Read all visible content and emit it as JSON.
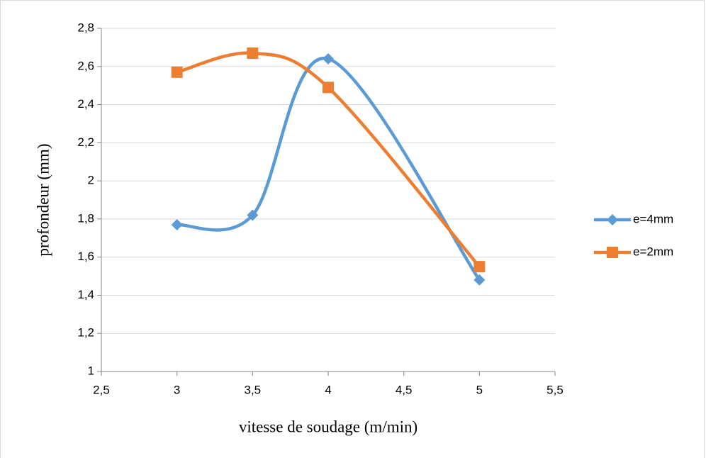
{
  "chart_data": {
    "type": "line",
    "x_label": "vitesse de soudage (m/min)",
    "y_label": "profondeur (mm)",
    "x": [
      3,
      3.5,
      4,
      5
    ],
    "series": [
      {
        "name": "e=4mm",
        "color": "#5b9bd5",
        "marker": "diamond",
        "values": [
          1.77,
          1.82,
          2.64,
          1.48
        ]
      },
      {
        "name": "e=2mm",
        "color": "#ed7d31",
        "marker": "square",
        "values": [
          2.57,
          2.67,
          2.49,
          1.55
        ]
      }
    ],
    "smooth": true,
    "xlim": [
      2.5,
      5.5
    ],
    "xticks": [
      {
        "value": 2.5,
        "label": "2,5"
      },
      3,
      {
        "value": 3.5,
        "label": "3,5"
      },
      4,
      {
        "value": 4.5,
        "label": "4,5"
      },
      5,
      {
        "value": 5.5,
        "label": "5,5"
      }
    ],
    "ylim": [
      1,
      2.8
    ],
    "yticks": [
      1,
      {
        "value": 1.2,
        "label": "1,2"
      },
      {
        "value": 1.4,
        "label": "1,4"
      },
      {
        "value": 1.6,
        "label": "1,6"
      },
      {
        "value": 1.8,
        "label": "1,8"
      },
      2,
      {
        "value": 2.2,
        "label": "2,2"
      },
      {
        "value": 2.4,
        "label": "2,4"
      },
      {
        "value": 2.6,
        "label": "2,6"
      },
      {
        "value": 2.8,
        "label": "2,8"
      }
    ],
    "grid": true,
    "legend": "right"
  }
}
